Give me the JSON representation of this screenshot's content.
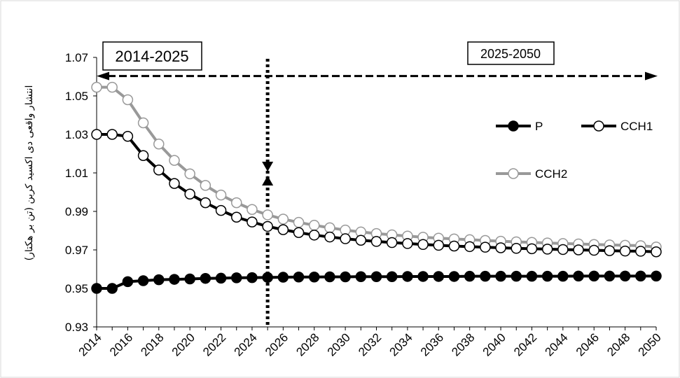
{
  "chart_data": {
    "type": "line",
    "title": "",
    "xlabel": "",
    "ylabel": "انتشار واقعی دی اکسید کربن (تن بر هکتار)",
    "x": [
      2014,
      2015,
      2016,
      2017,
      2018,
      2019,
      2020,
      2021,
      2022,
      2023,
      2024,
      2025,
      2026,
      2027,
      2028,
      2029,
      2030,
      2031,
      2032,
      2033,
      2034,
      2035,
      2036,
      2037,
      2038,
      2039,
      2040,
      2041,
      2042,
      2043,
      2044,
      2045,
      2046,
      2047,
      2048,
      2049,
      2050
    ],
    "x_tick_labels": [
      "2014",
      "2016",
      "2018",
      "2020",
      "2022",
      "2024",
      "2026",
      "2028",
      "2030",
      "2032",
      "2034",
      "2036",
      "2038",
      "2040",
      "2042",
      "2044",
      "2046",
      "2048",
      "2050"
    ],
    "y_tick_labels": [
      "0.93",
      "0.95",
      "0.97",
      "0.99",
      "1.01",
      "1.03",
      "1.05",
      "1.07"
    ],
    "xlim": [
      2014,
      2050
    ],
    "ylim": [
      0.93,
      1.07
    ],
    "grid": false,
    "legend_position": "right",
    "series": [
      {
        "name": "P",
        "color": "#000000",
        "marker_fill": "#000000",
        "marker_stroke": "#000000",
        "values": [
          0.95,
          0.95,
          0.9535,
          0.954,
          0.9545,
          0.9547,
          0.9549,
          0.9552,
          0.9553,
          0.9555,
          0.9556,
          0.9557,
          0.9558,
          0.9559,
          0.9559,
          0.956,
          0.956,
          0.9561,
          0.9561,
          0.9561,
          0.9562,
          0.9562,
          0.9562,
          0.9562,
          0.9563,
          0.9563,
          0.9563,
          0.9563,
          0.9563,
          0.9563,
          0.9563,
          0.9564,
          0.9564,
          0.9564,
          0.9564,
          0.9564,
          0.9564
        ]
      },
      {
        "name": "CCH1",
        "color": "#000000",
        "marker_fill": "#ffffff",
        "marker_stroke": "#000000",
        "values": [
          1.03,
          1.03,
          1.029,
          1.019,
          1.0115,
          1.0045,
          0.999,
          0.9945,
          0.9905,
          0.987,
          0.9845,
          0.9822,
          0.9805,
          0.979,
          0.9777,
          0.9767,
          0.9758,
          0.975,
          0.9744,
          0.9738,
          0.9733,
          0.9728,
          0.9724,
          0.972,
          0.9717,
          0.9714,
          0.9711,
          0.9708,
          0.9706,
          0.9704,
          0.9702,
          0.97,
          0.9698,
          0.9696,
          0.9694,
          0.9693,
          0.969
        ]
      },
      {
        "name": "CCH2",
        "color": "#999999",
        "marker_fill": "#ffffff",
        "marker_stroke": "#999999",
        "values": [
          1.0545,
          1.0545,
          1.048,
          1.036,
          1.025,
          1.0165,
          1.0095,
          1.0035,
          0.9985,
          0.9945,
          0.991,
          0.9882,
          0.986,
          0.9843,
          0.9828,
          0.9815,
          0.9803,
          0.9793,
          0.9785,
          0.9778,
          0.9772,
          0.9766,
          0.9761,
          0.9757,
          0.9753,
          0.9749,
          0.9745,
          0.9742,
          0.9739,
          0.9736,
          0.9733,
          0.9731,
          0.9728,
          0.9726,
          0.9724,
          0.9722,
          0.9715
        ]
      }
    ],
    "annotations": {
      "period_left": "2014-2025",
      "period_right": "2025-2050",
      "divider_year": 2025
    }
  }
}
